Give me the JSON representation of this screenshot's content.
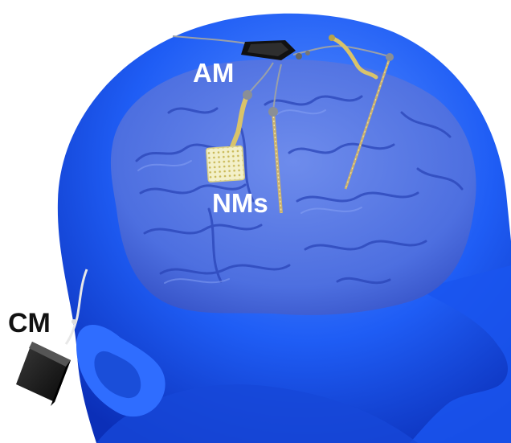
{
  "labels": {
    "am": "AM",
    "nms": "NMs",
    "cm": "CM"
  },
  "colors": {
    "head": "#1f5df5",
    "head_highlight": "#5c93ff",
    "head_shadow": "#0b2fb8",
    "brain": "#4d6fe0",
    "brain_fold": "#2a45b8",
    "electrode_gold": "#d9c36a",
    "grid_pad": "#f3f0c8",
    "module_black": "#151515",
    "label_light": "#ffffff",
    "label_dark": "#111111"
  },
  "icons": {
    "am": "antenna-module-chip",
    "nms": "neural-module-electrodes",
    "cm": "control-module-box"
  }
}
